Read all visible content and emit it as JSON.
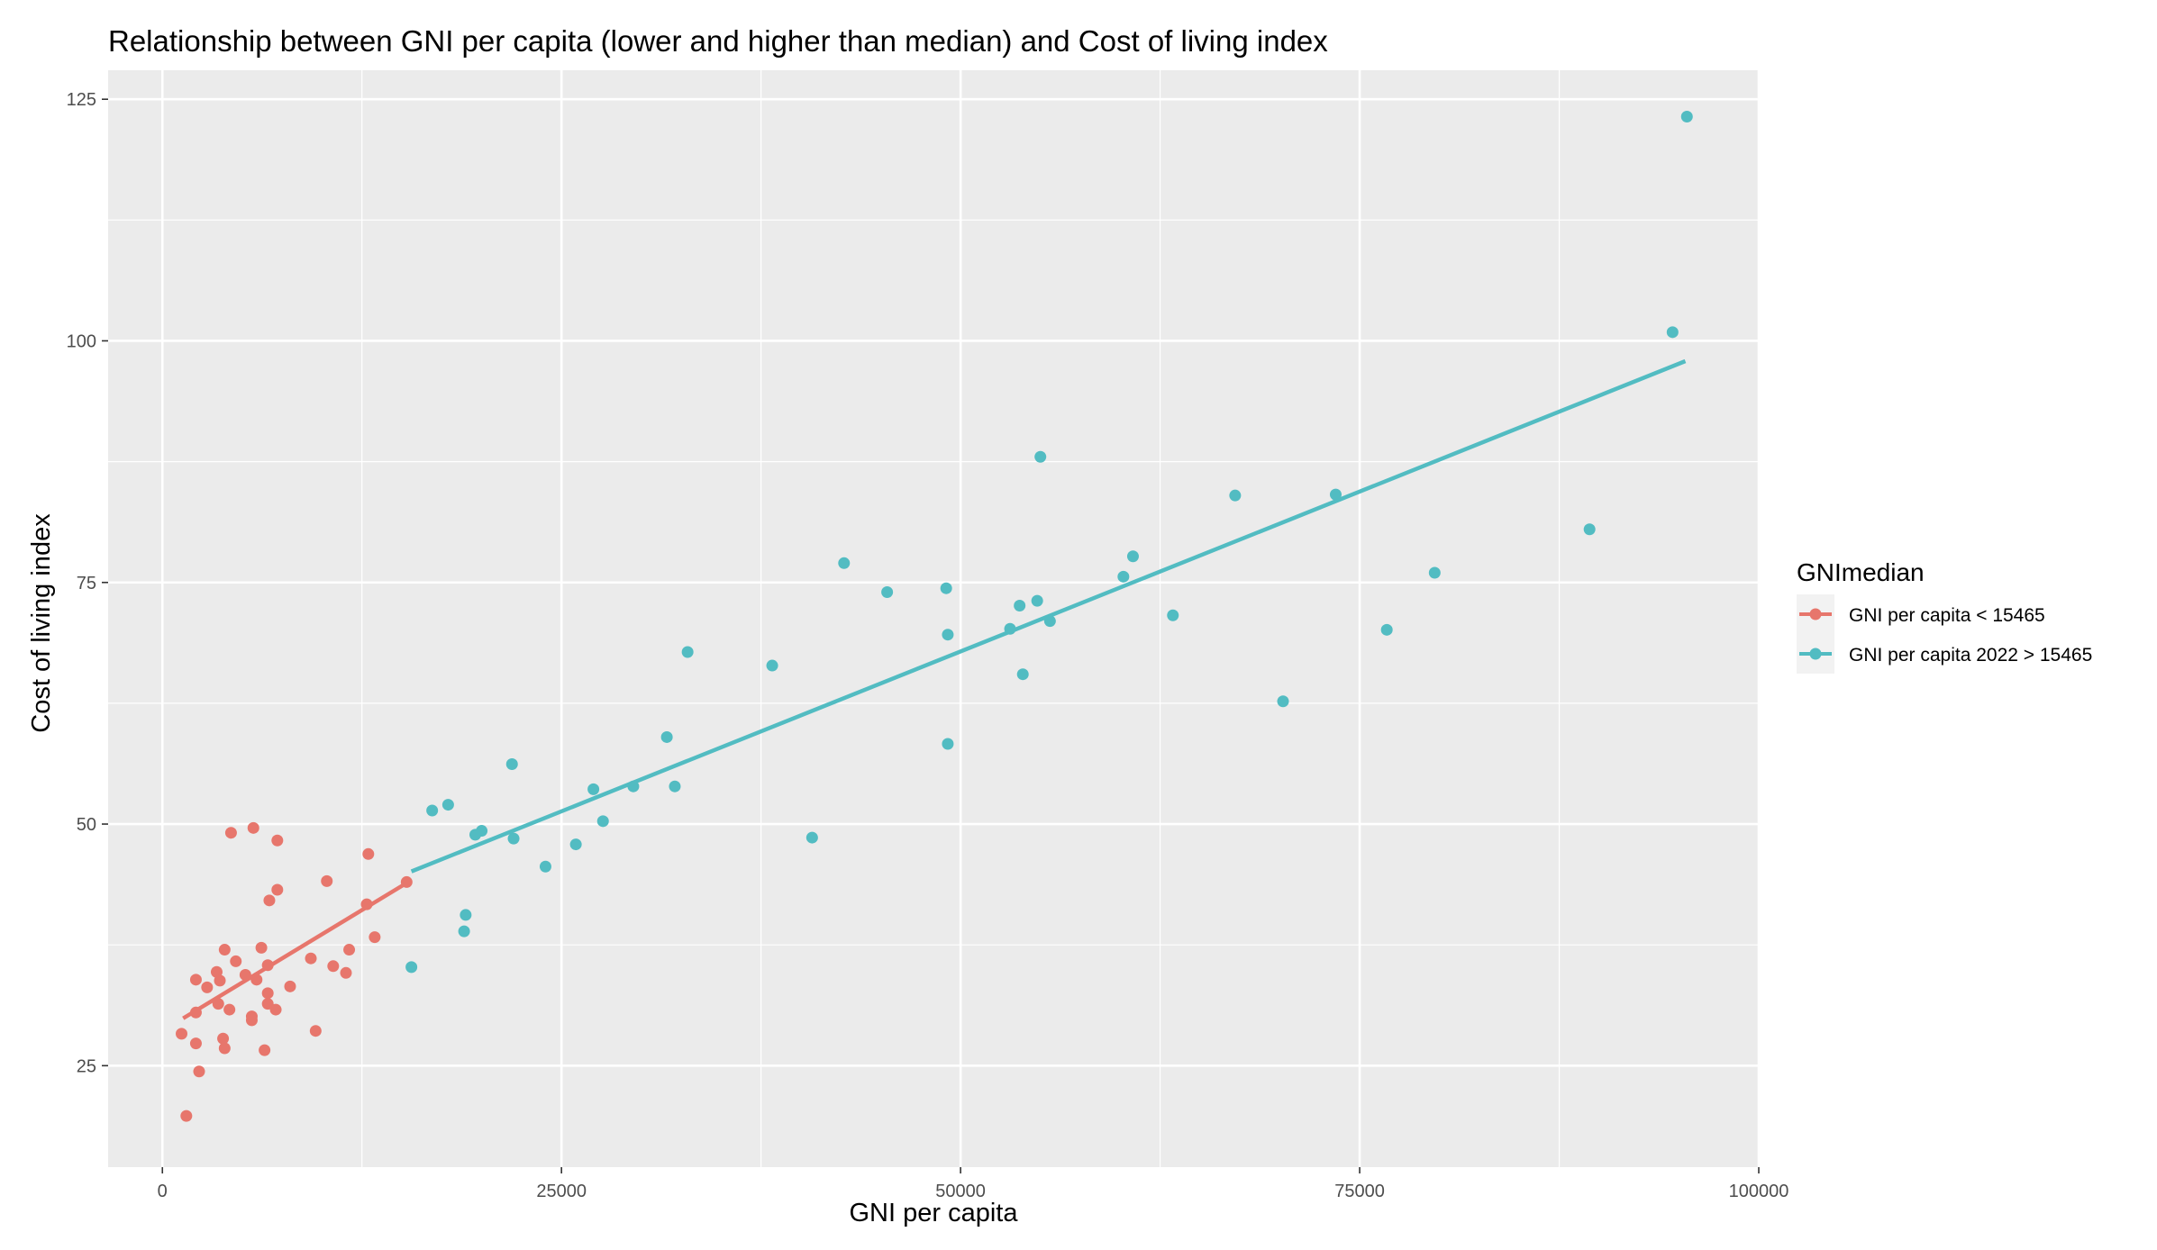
{
  "chart_data": {
    "type": "scatter",
    "title": "Relationship between GNI per capita (lower and higher than median) and Cost of living index",
    "xlabel": "GNI per capita",
    "ylabel": "Cost of living index",
    "xlim": [
      -3400,
      100000
    ],
    "ylim": [
      14.5,
      128
    ],
    "x_ticks": [
      0,
      25000,
      50000,
      75000,
      100000
    ],
    "y_ticks": [
      25,
      50,
      75,
      100,
      125
    ],
    "grid": true,
    "background": "#ebebeb",
    "legend": {
      "title": "GNImedian",
      "position": "right"
    },
    "series": [
      {
        "name": "GNI per capita < 15465",
        "color": "#e7766c",
        "fit_line": [
          [
            1300,
            29.9
          ],
          [
            15300,
            43.9
          ]
        ],
        "points": [
          [
            1200,
            28.3
          ],
          [
            1500,
            19.8
          ],
          [
            2100,
            27.3
          ],
          [
            2100,
            30.5
          ],
          [
            2100,
            33.9
          ],
          [
            2300,
            24.4
          ],
          [
            2800,
            33.1
          ],
          [
            3400,
            34.7
          ],
          [
            3500,
            31.4
          ],
          [
            3600,
            33.8
          ],
          [
            3800,
            27.8
          ],
          [
            3900,
            26.8
          ],
          [
            3900,
            37.0
          ],
          [
            4200,
            30.8
          ],
          [
            4300,
            49.1
          ],
          [
            4600,
            35.8
          ],
          [
            5200,
            34.4
          ],
          [
            5600,
            30.1
          ],
          [
            5600,
            29.7
          ],
          [
            5700,
            49.6
          ],
          [
            5900,
            33.9
          ],
          [
            6200,
            37.2
          ],
          [
            6400,
            26.6
          ],
          [
            6600,
            31.4
          ],
          [
            6600,
            32.5
          ],
          [
            6600,
            35.4
          ],
          [
            6700,
            42.1
          ],
          [
            7100,
            30.8
          ],
          [
            7200,
            43.2
          ],
          [
            7200,
            48.3
          ],
          [
            8000,
            33.2
          ],
          [
            9300,
            36.1
          ],
          [
            9600,
            28.6
          ],
          [
            10300,
            44.1
          ],
          [
            10700,
            35.3
          ],
          [
            11500,
            34.6
          ],
          [
            11700,
            37.0
          ],
          [
            12800,
            41.7
          ],
          [
            12900,
            46.9
          ],
          [
            13300,
            38.3
          ],
          [
            15300,
            44.0
          ]
        ]
      },
      {
        "name": "GNI per capita 2022 > 15465",
        "color": "#52bcc2",
        "fit_line": [
          [
            15600,
            45.1
          ],
          [
            95400,
            97.9
          ]
        ],
        "points": [
          [
            15600,
            35.2
          ],
          [
            16900,
            51.4
          ],
          [
            17900,
            52.0
          ],
          [
            18900,
            38.9
          ],
          [
            19000,
            40.6
          ],
          [
            19600,
            48.9
          ],
          [
            20000,
            49.3
          ],
          [
            21900,
            56.2
          ],
          [
            22000,
            48.5
          ],
          [
            24000,
            45.6
          ],
          [
            25900,
            47.9
          ],
          [
            27000,
            53.6
          ],
          [
            27600,
            50.3
          ],
          [
            29500,
            53.9
          ],
          [
            31600,
            59.0
          ],
          [
            32100,
            53.9
          ],
          [
            32900,
            67.8
          ],
          [
            38200,
            66.4
          ],
          [
            40700,
            48.6
          ],
          [
            42700,
            77.0
          ],
          [
            45400,
            74.0
          ],
          [
            49100,
            74.4
          ],
          [
            49200,
            69.6
          ],
          [
            49200,
            58.3
          ],
          [
            53100,
            70.2
          ],
          [
            53700,
            72.6
          ],
          [
            53900,
            65.5
          ],
          [
            54800,
            73.1
          ],
          [
            55000,
            88.0
          ],
          [
            55600,
            71.0
          ],
          [
            60200,
            75.6
          ],
          [
            60800,
            77.7
          ],
          [
            63300,
            71.6
          ],
          [
            67200,
            84.0
          ],
          [
            70200,
            62.7
          ],
          [
            73500,
            84.1
          ],
          [
            76700,
            70.1
          ],
          [
            79700,
            76.0
          ],
          [
            89400,
            80.5
          ],
          [
            94600,
            100.9
          ],
          [
            95500,
            123.2
          ]
        ]
      }
    ]
  }
}
